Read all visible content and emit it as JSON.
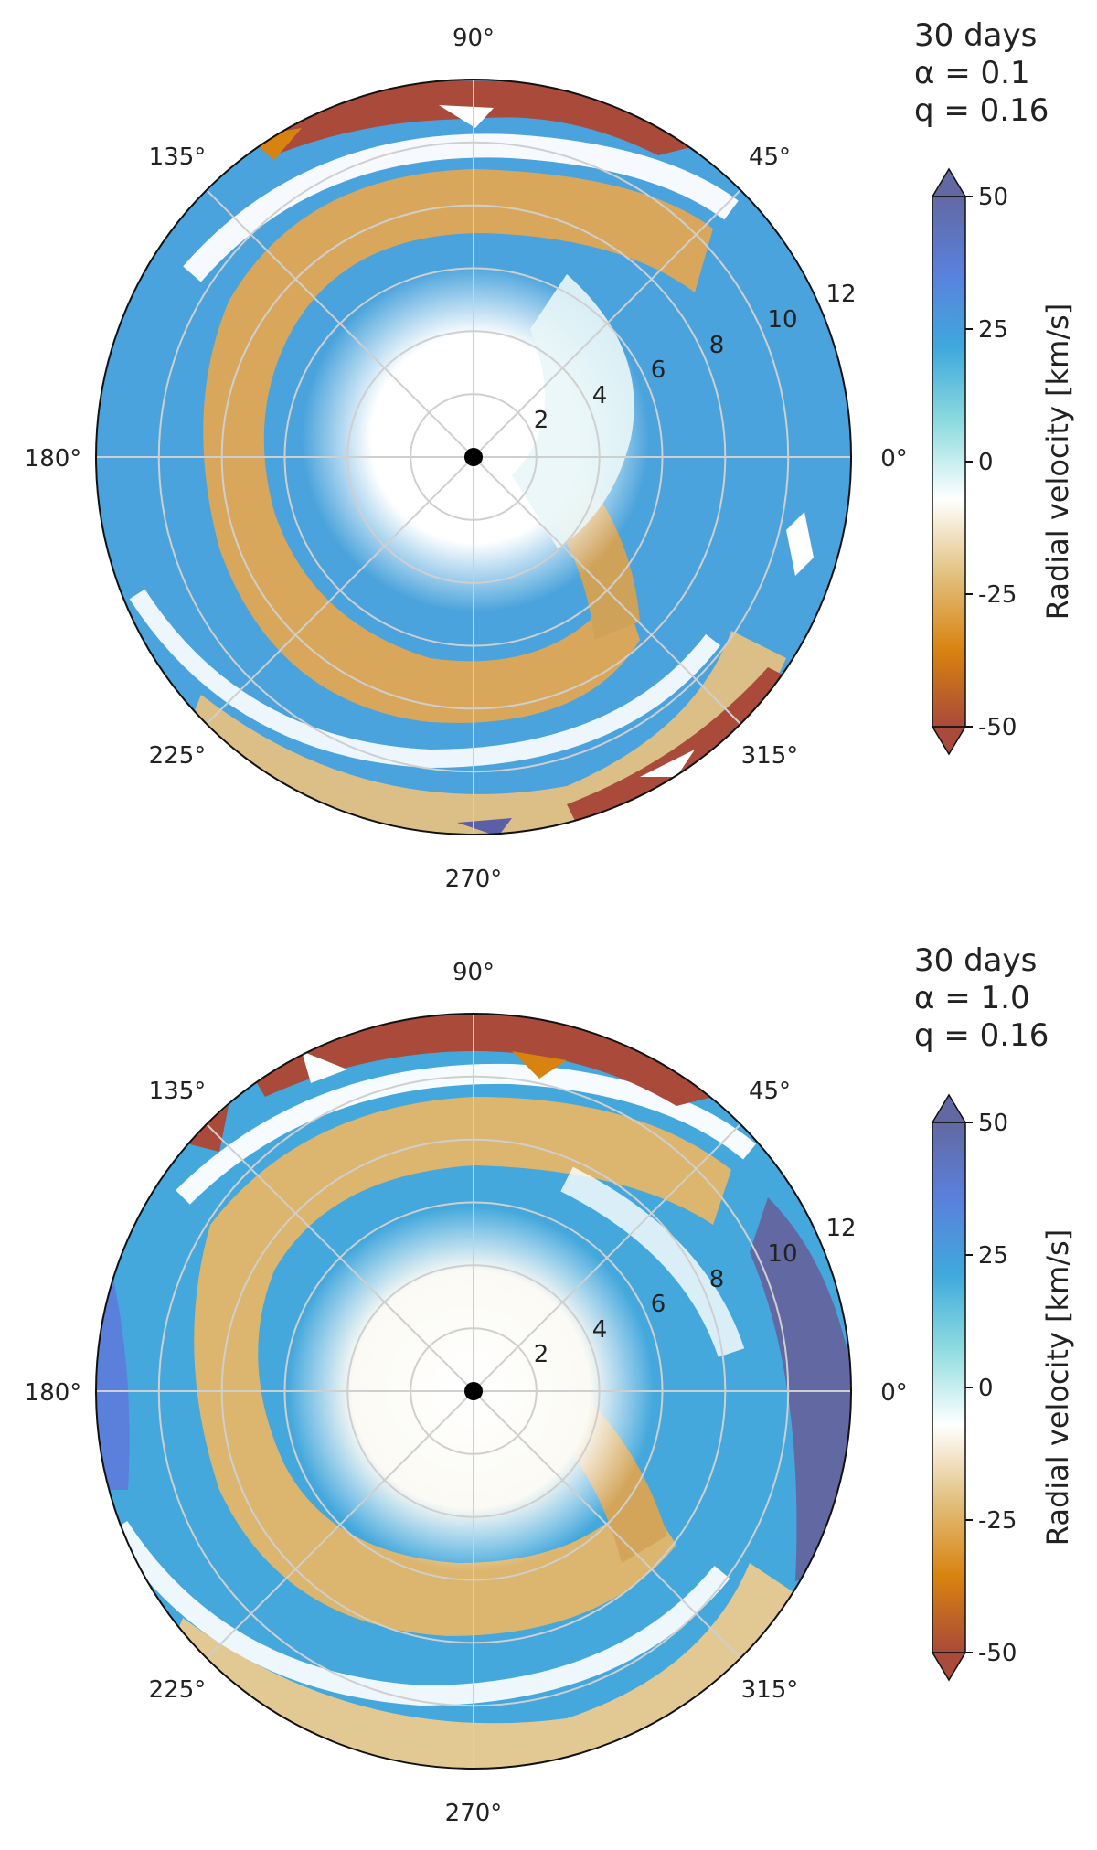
{
  "chart_data": [
    {
      "type": "polar-heatmap",
      "quantity": "Radial velocity",
      "annotation": [
        "30 days",
        "α = 0.1",
        "q = 0.16"
      ],
      "angle_ticks": [
        "0°",
        "45°",
        "90°",
        "135°",
        "180°",
        "225°",
        "270°",
        "315°"
      ],
      "angle_tick_values_deg": [
        0,
        45,
        90,
        135,
        180,
        225,
        270,
        315
      ],
      "radial_ticks": [
        "2",
        "4",
        "6",
        "8",
        "10",
        "12"
      ],
      "radial_tick_values": [
        2,
        4,
        6,
        8,
        10,
        12
      ],
      "rlim": [
        0,
        12
      ],
      "grid": true,
      "colorbar": {
        "label": "Radial velocity [km/s]",
        "ticks": [
          "50",
          "25",
          "0",
          "-25",
          "-50"
        ],
        "tick_values": [
          50,
          25,
          0,
          -25,
          -50
        ],
        "range": [
          -50,
          50
        ],
        "extend": "both",
        "colors": [
          "#a94a3a",
          "#d8820f",
          "#e2c07e",
          "#ffffff",
          "#8fdcdf",
          "#3fa9dc",
          "#5a80dc",
          "#6269a2"
        ]
      },
      "center_marker": "companion"
    },
    {
      "type": "polar-heatmap",
      "quantity": "Radial velocity",
      "annotation": [
        "30 days",
        "α = 1.0",
        "q = 0.16"
      ],
      "angle_ticks": [
        "0°",
        "45°",
        "90°",
        "135°",
        "180°",
        "225°",
        "270°",
        "315°"
      ],
      "angle_tick_values_deg": [
        0,
        45,
        90,
        135,
        180,
        225,
        270,
        315
      ],
      "radial_ticks": [
        "2",
        "4",
        "6",
        "8",
        "10",
        "12"
      ],
      "radial_tick_values": [
        2,
        4,
        6,
        8,
        10,
        12
      ],
      "rlim": [
        0,
        12
      ],
      "grid": true,
      "colorbar": {
        "label": "Radial velocity [km/s]",
        "ticks": [
          "50",
          "25",
          "0",
          "-25",
          "-50"
        ],
        "tick_values": [
          50,
          25,
          0,
          -25,
          -50
        ],
        "range": [
          -50,
          50
        ],
        "extend": "both",
        "colors": [
          "#a94a3a",
          "#d8820f",
          "#e2c07e",
          "#ffffff",
          "#8fdcdf",
          "#3fa9dc",
          "#5a80dc",
          "#6269a2"
        ]
      },
      "center_marker": "companion"
    }
  ]
}
